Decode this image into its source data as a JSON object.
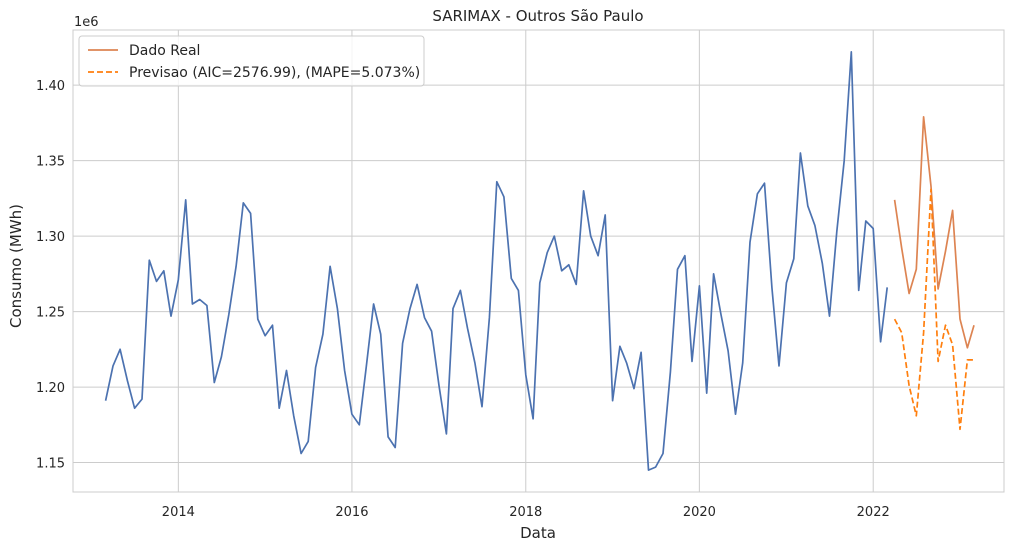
{
  "chart_data": {
    "type": "line",
    "title": "SARIMAX - Outros São Paulo",
    "xlabel": "Data",
    "ylabel": "Consumo (MWh)",
    "y_offset_label": "1e6",
    "xlim": [
      "2012-10-15",
      "2023-07-05"
    ],
    "ylim": [
      1.1305,
      1.4365
    ],
    "x_ticks": [
      {
        "value": "2014-01-01",
        "label": "2014"
      },
      {
        "value": "2016-01-01",
        "label": "2016"
      },
      {
        "value": "2018-01-01",
        "label": "2018"
      },
      {
        "value": "2020-01-01",
        "label": "2020"
      },
      {
        "value": "2022-01-01",
        "label": "2022"
      }
    ],
    "y_ticks": [
      {
        "value": 1.15,
        "label": "1.15"
      },
      {
        "value": 1.2,
        "label": "1.20"
      },
      {
        "value": 1.25,
        "label": "1.25"
      },
      {
        "value": 1.3,
        "label": "1.30"
      },
      {
        "value": 1.35,
        "label": "1.35"
      },
      {
        "value": 1.4,
        "label": "1.40"
      }
    ],
    "grid": true,
    "legend": "top-left",
    "series": [
      {
        "name": "",
        "color": "#4c72b0",
        "style": "solid",
        "x": [
          "2013-03",
          "2013-04",
          "2013-05",
          "2013-06",
          "2013-07",
          "2013-08",
          "2013-09",
          "2013-10",
          "2013-11",
          "2013-12",
          "2014-01",
          "2014-02",
          "2014-03",
          "2014-04",
          "2014-05",
          "2014-06",
          "2014-07",
          "2014-08",
          "2014-09",
          "2014-10",
          "2014-11",
          "2014-12",
          "2015-01",
          "2015-02",
          "2015-03",
          "2015-04",
          "2015-05",
          "2015-06",
          "2015-07",
          "2015-08",
          "2015-09",
          "2015-10",
          "2015-11",
          "2015-12",
          "2016-01",
          "2016-02",
          "2016-03",
          "2016-04",
          "2016-05",
          "2016-06",
          "2016-07",
          "2016-08",
          "2016-09",
          "2016-10",
          "2016-11",
          "2016-12",
          "2017-01",
          "2017-02",
          "2017-03",
          "2017-04",
          "2017-05",
          "2017-06",
          "2017-07",
          "2017-08",
          "2017-09",
          "2017-10",
          "2017-11",
          "2017-12",
          "2018-01",
          "2018-02",
          "2018-03",
          "2018-04",
          "2018-05",
          "2018-06",
          "2018-07",
          "2018-08",
          "2018-09",
          "2018-10",
          "2018-11",
          "2018-12",
          "2019-01",
          "2019-02",
          "2019-03",
          "2019-04",
          "2019-05",
          "2019-06",
          "2019-07",
          "2019-08",
          "2019-09",
          "2019-10",
          "2019-11",
          "2019-12",
          "2020-01",
          "2020-02",
          "2020-03",
          "2020-04",
          "2020-05",
          "2020-06",
          "2020-07",
          "2020-08",
          "2020-09",
          "2020-10",
          "2020-11",
          "2020-12",
          "2021-01",
          "2021-02",
          "2021-03",
          "2021-04",
          "2021-05",
          "2021-06",
          "2021-07",
          "2021-08",
          "2021-09",
          "2021-10",
          "2021-11",
          "2021-12",
          "2022-01",
          "2022-02",
          "2022-03"
        ],
        "values": [
          1.191,
          1.214,
          1.225,
          1.204,
          1.186,
          1.192,
          1.284,
          1.27,
          1.277,
          1.247,
          1.271,
          1.324,
          1.255,
          1.258,
          1.254,
          1.203,
          1.22,
          1.248,
          1.28,
          1.322,
          1.315,
          1.245,
          1.234,
          1.241,
          1.186,
          1.211,
          1.181,
          1.156,
          1.164,
          1.213,
          1.235,
          1.28,
          1.252,
          1.211,
          1.182,
          1.175,
          1.213,
          1.255,
          1.235,
          1.167,
          1.16,
          1.229,
          1.252,
          1.268,
          1.246,
          1.237,
          1.201,
          1.169,
          1.252,
          1.264,
          1.239,
          1.216,
          1.187,
          1.246,
          1.336,
          1.326,
          1.272,
          1.264,
          1.208,
          1.179,
          1.269,
          1.289,
          1.3,
          1.277,
          1.281,
          1.268,
          1.33,
          1.3,
          1.287,
          1.314,
          1.191,
          1.227,
          1.216,
          1.199,
          1.223,
          1.145,
          1.147,
          1.156,
          1.21,
          1.278,
          1.287,
          1.217,
          1.267,
          1.196,
          1.275,
          1.248,
          1.224,
          1.182,
          1.216,
          1.296,
          1.328,
          1.335,
          1.266,
          1.214,
          1.269,
          1.285,
          1.355,
          1.32,
          1.307,
          1.282,
          1.247,
          1.303,
          1.35,
          1.422,
          1.264,
          1.31,
          1.305,
          1.23,
          1.266
        ]
      },
      {
        "name": "Dado Real",
        "color": "#dd8452",
        "style": "solid",
        "x": [
          "2022-04",
          "2022-05",
          "2022-06",
          "2022-07",
          "2022-08",
          "2022-09",
          "2022-10",
          "2022-11",
          "2022-12",
          "2023-01",
          "2023-02",
          "2023-03"
        ],
        "values": [
          1.324,
          1.292,
          1.262,
          1.278,
          1.379,
          1.333,
          1.265,
          1.29,
          1.317,
          1.245,
          1.226,
          1.241
        ]
      },
      {
        "name": "Previsao (AIC=2576.99), (MAPE=5.073%)",
        "color": "#ff7f0e",
        "style": "dashed",
        "x": [
          "2022-04",
          "2022-05",
          "2022-06",
          "2022-07",
          "2022-08",
          "2022-09",
          "2022-10",
          "2022-11",
          "2022-12",
          "2023-01",
          "2023-02",
          "2023-03"
        ],
        "values": [
          1.245,
          1.236,
          1.201,
          1.181,
          1.236,
          1.331,
          1.217,
          1.241,
          1.228,
          1.172,
          1.218,
          1.218
        ]
      }
    ]
  }
}
